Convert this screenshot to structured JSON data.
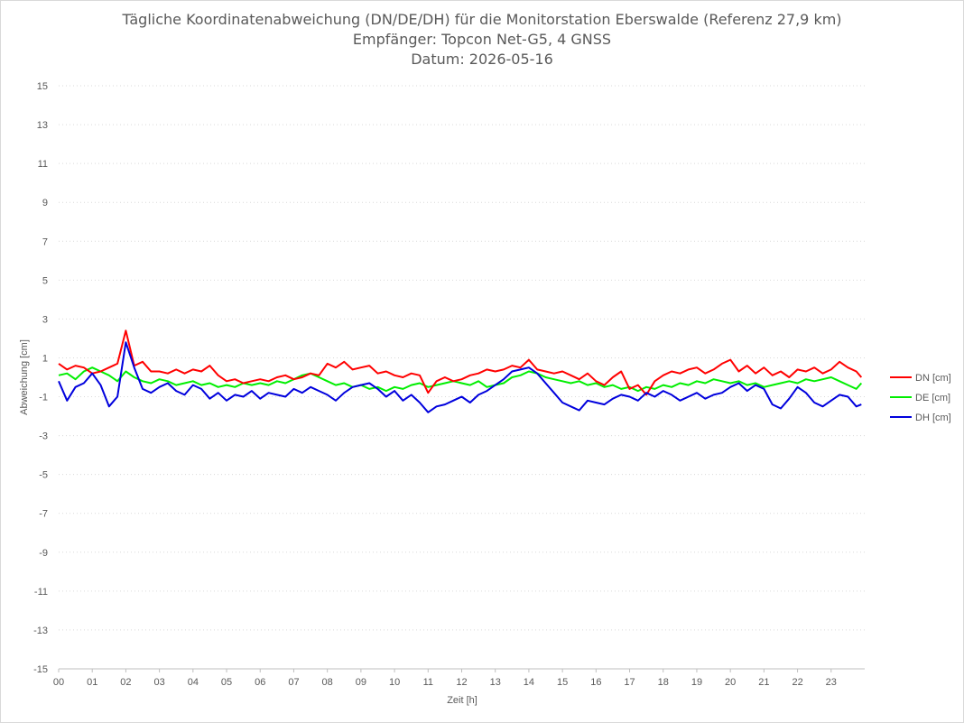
{
  "chart_data": {
    "type": "line",
    "title": "Tägliche Koordinatenabweichung (DN/DE/DH) für die Monitorstation Eberswalde (Referenz 27,9 km)",
    "subtitle": [
      "Empfänger: Topcon Net-G5, 4 GNSS",
      "Datum: 2026-05-16"
    ],
    "xlabel": "Zeit [h]",
    "ylabel": "Abweichung [cm]",
    "xlim": [
      0,
      24
    ],
    "ylim": [
      -15,
      15
    ],
    "x_ticks": [
      "00",
      "01",
      "02",
      "03",
      "04",
      "05",
      "06",
      "07",
      "08",
      "09",
      "10",
      "11",
      "12",
      "13",
      "14",
      "15",
      "16",
      "17",
      "18",
      "19",
      "20",
      "21",
      "22",
      "23"
    ],
    "y_ticks": [
      "15",
      "13",
      "11",
      "9",
      "7",
      "5",
      "3",
      "1",
      "-1",
      "-3",
      "-5",
      "-7",
      "-9",
      "-11",
      "-13",
      "-15"
    ],
    "grid": "horizontal dotted",
    "legend_position": "right",
    "x": [
      0.0,
      0.25,
      0.5,
      0.75,
      1.0,
      1.25,
      1.5,
      1.75,
      2.0,
      2.25,
      2.5,
      2.75,
      3.0,
      3.25,
      3.5,
      3.75,
      4.0,
      4.25,
      4.5,
      4.75,
      5.0,
      5.25,
      5.5,
      5.75,
      6.0,
      6.25,
      6.5,
      6.75,
      7.0,
      7.25,
      7.5,
      7.75,
      8.0,
      8.25,
      8.5,
      8.75,
      9.0,
      9.25,
      9.5,
      9.75,
      10.0,
      10.25,
      10.5,
      10.75,
      11.0,
      11.25,
      11.5,
      11.75,
      12.0,
      12.25,
      12.5,
      12.75,
      13.0,
      13.25,
      13.5,
      13.75,
      14.0,
      14.25,
      14.5,
      14.75,
      15.0,
      15.25,
      15.5,
      15.75,
      16.0,
      16.25,
      16.5,
      16.75,
      17.0,
      17.25,
      17.5,
      17.75,
      18.0,
      18.25,
      18.5,
      18.75,
      19.0,
      19.25,
      19.5,
      19.75,
      20.0,
      20.25,
      20.5,
      20.75,
      21.0,
      21.25,
      21.5,
      21.75,
      22.0,
      22.25,
      22.5,
      22.75,
      23.0,
      23.25,
      23.5,
      23.75,
      23.9
    ],
    "series": [
      {
        "name": "DN [cm]",
        "color": "#ff0000",
        "values": [
          0.7,
          0.4,
          0.6,
          0.5,
          0.2,
          0.3,
          0.5,
          0.7,
          2.4,
          0.6,
          0.8,
          0.3,
          0.3,
          0.2,
          0.4,
          0.2,
          0.4,
          0.3,
          0.6,
          0.1,
          -0.2,
          -0.1,
          -0.3,
          -0.2,
          -0.1,
          -0.2,
          0.0,
          0.1,
          -0.1,
          0.0,
          0.2,
          0.1,
          0.7,
          0.5,
          0.8,
          0.4,
          0.5,
          0.6,
          0.2,
          0.3,
          0.1,
          0.0,
          0.2,
          0.1,
          -0.8,
          -0.2,
          0.0,
          -0.2,
          -0.1,
          0.1,
          0.2,
          0.4,
          0.3,
          0.4,
          0.6,
          0.5,
          0.9,
          0.4,
          0.3,
          0.2,
          0.3,
          0.1,
          -0.1,
          0.2,
          -0.2,
          -0.4,
          0.0,
          0.3,
          -0.6,
          -0.4,
          -0.9,
          -0.2,
          0.1,
          0.3,
          0.2,
          0.4,
          0.5,
          0.2,
          0.4,
          0.7,
          0.9,
          0.3,
          0.6,
          0.2,
          0.5,
          0.1,
          0.3,
          0.0,
          0.4,
          0.3,
          0.5,
          0.2,
          0.4,
          0.8,
          0.5,
          0.3,
          0.0
        ]
      },
      {
        "name": "DE [cm]",
        "color": "#00ee00",
        "values": [
          0.1,
          0.2,
          -0.1,
          0.3,
          0.5,
          0.3,
          0.1,
          -0.2,
          0.3,
          0.0,
          -0.2,
          -0.3,
          -0.1,
          -0.2,
          -0.4,
          -0.3,
          -0.2,
          -0.4,
          -0.3,
          -0.5,
          -0.4,
          -0.5,
          -0.3,
          -0.4,
          -0.3,
          -0.4,
          -0.2,
          -0.3,
          -0.1,
          0.1,
          0.2,
          0.0,
          -0.2,
          -0.4,
          -0.3,
          -0.5,
          -0.4,
          -0.6,
          -0.5,
          -0.7,
          -0.5,
          -0.6,
          -0.4,
          -0.3,
          -0.5,
          -0.4,
          -0.3,
          -0.2,
          -0.3,
          -0.4,
          -0.2,
          -0.5,
          -0.4,
          -0.3,
          0.0,
          0.1,
          0.3,
          0.2,
          0.0,
          -0.1,
          -0.2,
          -0.3,
          -0.2,
          -0.4,
          -0.3,
          -0.5,
          -0.4,
          -0.6,
          -0.5,
          -0.7,
          -0.5,
          -0.6,
          -0.4,
          -0.5,
          -0.3,
          -0.4,
          -0.2,
          -0.3,
          -0.1,
          -0.2,
          -0.3,
          -0.2,
          -0.4,
          -0.3,
          -0.5,
          -0.4,
          -0.3,
          -0.2,
          -0.3,
          -0.1,
          -0.2,
          -0.1,
          0.0,
          -0.2,
          -0.4,
          -0.6,
          -0.3
        ]
      },
      {
        "name": "DH [cm]",
        "color": "#0000dd",
        "values": [
          -0.2,
          -1.2,
          -0.5,
          -0.3,
          0.2,
          -0.4,
          -1.5,
          -1.0,
          1.8,
          0.5,
          -0.6,
          -0.8,
          -0.5,
          -0.3,
          -0.7,
          -0.9,
          -0.4,
          -0.6,
          -1.1,
          -0.8,
          -1.2,
          -0.9,
          -1.0,
          -0.7,
          -1.1,
          -0.8,
          -0.9,
          -1.0,
          -0.6,
          -0.8,
          -0.5,
          -0.7,
          -0.9,
          -1.2,
          -0.8,
          -0.5,
          -0.4,
          -0.3,
          -0.6,
          -1.0,
          -0.7,
          -1.2,
          -0.9,
          -1.3,
          -1.8,
          -1.5,
          -1.4,
          -1.2,
          -1.0,
          -1.3,
          -0.9,
          -0.7,
          -0.4,
          -0.1,
          0.3,
          0.4,
          0.5,
          0.2,
          -0.3,
          -0.8,
          -1.3,
          -1.5,
          -1.7,
          -1.2,
          -1.3,
          -1.4,
          -1.1,
          -0.9,
          -1.0,
          -1.2,
          -0.8,
          -1.0,
          -0.7,
          -0.9,
          -1.2,
          -1.0,
          -0.8,
          -1.1,
          -0.9,
          -0.8,
          -0.5,
          -0.3,
          -0.7,
          -0.4,
          -0.6,
          -1.4,
          -1.6,
          -1.1,
          -0.5,
          -0.8,
          -1.3,
          -1.5,
          -1.2,
          -0.9,
          -1.0,
          -1.5,
          -1.4
        ]
      }
    ]
  }
}
